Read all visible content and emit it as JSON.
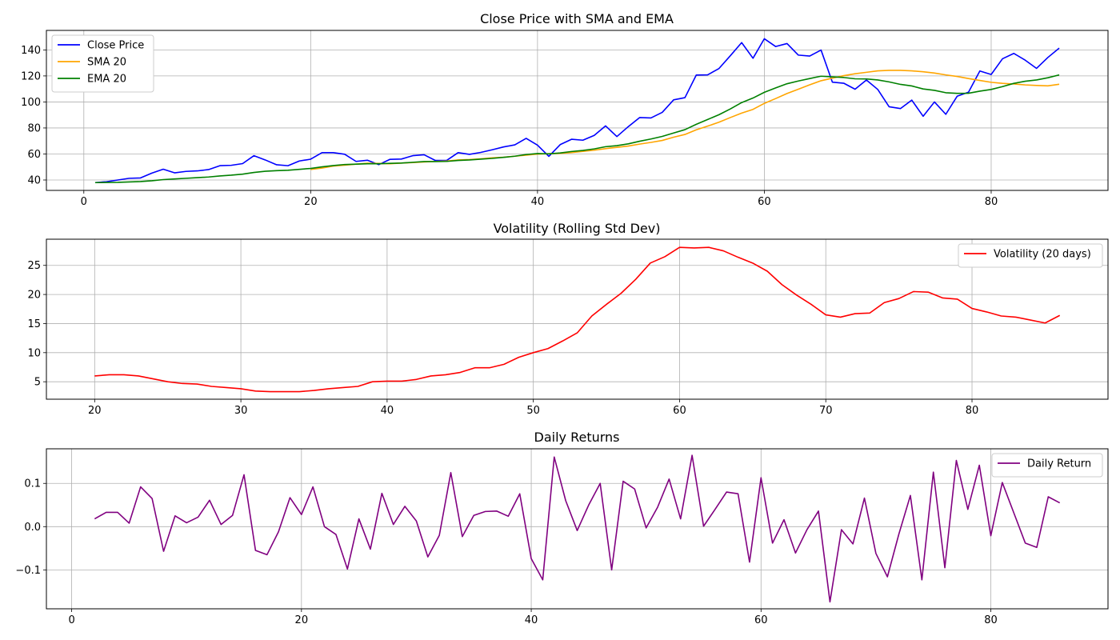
{
  "chart_data": [
    {
      "type": "line",
      "title": "Close Price with SMA and EMA",
      "xlim": [
        -3.3,
        90.3
      ],
      "ylim": [
        32,
        155
      ],
      "xticks": [
        0,
        20,
        40,
        60,
        80
      ],
      "yticks": [
        40,
        60,
        80,
        100,
        120,
        140
      ],
      "grid": true,
      "legend_position": "upper-left",
      "series": [
        {
          "name": "Close Price",
          "color": "#0000ff",
          "x": [
            1,
            2,
            3,
            4,
            5,
            6,
            7,
            8,
            9,
            10,
            11,
            12,
            13,
            14,
            15,
            16,
            17,
            18,
            19,
            20,
            21,
            22,
            23,
            24,
            25,
            26,
            27,
            28,
            29,
            30,
            31,
            32,
            33,
            34,
            35,
            36,
            37,
            38,
            39,
            40,
            41,
            42,
            43,
            44,
            45,
            46,
            47,
            48,
            49,
            50,
            51,
            52,
            53,
            54,
            55,
            56,
            57,
            58,
            59,
            60,
            61,
            62,
            63,
            64,
            65,
            66,
            67,
            68,
            69,
            70,
            71,
            72,
            73,
            74,
            75,
            76,
            77,
            78,
            79,
            80,
            81,
            82,
            83,
            84,
            85,
            86
          ],
          "y": [
            38,
            38.7,
            40,
            41.3,
            41.6,
            45.3,
            48.3,
            45.5,
            46.6,
            47,
            48,
            51,
            51.3,
            52.6,
            58.7,
            55.4,
            51.7,
            51,
            54.6,
            56,
            61,
            61,
            59.8,
            54.3,
            55.2,
            51.8,
            55.9,
            56.1,
            58.7,
            59.4,
            55,
            55.1,
            61,
            59.7,
            61.2,
            63.2,
            65.4,
            67,
            72,
            66.8,
            58.2,
            67.2,
            71.3,
            70.6,
            74.3,
            81.6,
            73.4,
            81,
            88,
            87.7,
            92,
            101.6,
            103.3,
            120.7,
            120.8,
            125.7,
            135.5,
            145.6,
            133.6,
            148.6,
            142.6,
            144.9,
            136,
            135.3,
            139.9,
            115.2,
            114.4,
            109.8,
            116.9,
            109.6,
            96.3,
            94.9,
            101.4,
            89,
            100,
            90.5,
            104.4,
            107.5,
            123.8,
            121.1,
            133.2,
            137.3,
            132.1,
            125.8,
            134.2,
            141.4
          ]
        },
        {
          "name": "SMA 20",
          "color": "#ffa500",
          "x": [
            20,
            21,
            22,
            23,
            24,
            25,
            26,
            27,
            28,
            29,
            30,
            31,
            32,
            33,
            34,
            35,
            36,
            37,
            38,
            39,
            40,
            41,
            42,
            43,
            44,
            45,
            46,
            47,
            48,
            49,
            50,
            51,
            52,
            53,
            54,
            55,
            56,
            57,
            58,
            59,
            60,
            61,
            62,
            63,
            64,
            65,
            66,
            67,
            68,
            69,
            70,
            71,
            72,
            73,
            74,
            75,
            76,
            77,
            78,
            79,
            80,
            81,
            82,
            83,
            84,
            85,
            86
          ],
          "y": [
            48.1,
            49.2,
            50.7,
            51.4,
            52.2,
            52.9,
            52.7,
            52.5,
            53,
            53.4,
            53.9,
            54.3,
            54.6,
            55.4,
            55.7,
            56.3,
            57,
            57.5,
            58.3,
            59.1,
            59.9,
            60.2,
            60.5,
            61.1,
            62,
            62.9,
            64.1,
            65.1,
            66.1,
            67.6,
            68.9,
            70.4,
            72.9,
            75,
            78.6,
            81.4,
            84.4,
            88,
            91.4,
            94.3,
            98.9,
            102.6,
            106.5,
            109.8,
            113.2,
            116.3,
            118.3,
            120.2,
            121.7,
            122.8,
            123.9,
            124.3,
            124.3,
            123.9,
            123.2,
            122.2,
            120.8,
            119.6,
            118,
            116.5,
            115.1,
            114.3,
            113.8,
            113.1,
            112.7,
            112.4,
            113.6
          ]
        },
        {
          "name": "EMA 20",
          "color": "#008000",
          "x": [
            1,
            2,
            3,
            4,
            5,
            6,
            7,
            8,
            9,
            10,
            11,
            12,
            13,
            14,
            15,
            16,
            17,
            18,
            19,
            20,
            21,
            22,
            23,
            24,
            25,
            26,
            27,
            28,
            29,
            30,
            31,
            32,
            33,
            34,
            35,
            36,
            37,
            38,
            39,
            40,
            41,
            42,
            43,
            44,
            45,
            46,
            47,
            48,
            49,
            50,
            51,
            52,
            53,
            54,
            55,
            56,
            57,
            58,
            59,
            60,
            61,
            62,
            63,
            64,
            65,
            66,
            67,
            68,
            69,
            70,
            71,
            72,
            73,
            74,
            75,
            76,
            77,
            78,
            79,
            80,
            81,
            82,
            83,
            84,
            85,
            86
          ],
          "y": [
            38,
            38.1,
            38.2,
            38.5,
            38.8,
            39.4,
            40.3,
            40.8,
            41.3,
            41.8,
            42.3,
            43.1,
            43.7,
            44.5,
            45.8,
            46.7,
            47.2,
            47.5,
            48.2,
            48.9,
            50.1,
            51.1,
            51.9,
            52.2,
            52.5,
            52.5,
            52.8,
            53,
            53.6,
            54.2,
            54.2,
            54.3,
            55,
            55.4,
            56,
            56.6,
            57.4,
            58.3,
            59.6,
            60.3,
            60.1,
            60.8,
            61.9,
            62.7,
            63.9,
            65.6,
            66.4,
            67.8,
            69.8,
            71.5,
            73.5,
            76.1,
            78.7,
            82.8,
            86.5,
            90.2,
            94.6,
            99.5,
            103,
            107.4,
            110.8,
            114,
            116.1,
            118,
            119.8,
            119.3,
            118.8,
            117.8,
            117.7,
            116.9,
            115.4,
            113.5,
            112.3,
            110,
            108.9,
            107.1,
            106.6,
            106.7,
            108.3,
            109.6,
            111.8,
            114.3,
            115.9,
            116.9,
            118.6,
            120.8
          ]
        }
      ]
    },
    {
      "type": "line",
      "title": "Volatility (Rolling Std Dev)",
      "xlim": [
        16.7,
        89.3
      ],
      "ylim": [
        2,
        29.5
      ],
      "xticks": [
        20,
        30,
        40,
        50,
        60,
        70,
        80
      ],
      "yticks": [
        5,
        10,
        15,
        20,
        25
      ],
      "grid": true,
      "legend_position": "upper-right",
      "series": [
        {
          "name": "Volatility (20 days)",
          "color": "#ff0000",
          "x": [
            20,
            21,
            22,
            23,
            24,
            25,
            26,
            27,
            28,
            29,
            30,
            31,
            32,
            33,
            34,
            35,
            36,
            37,
            38,
            39,
            40,
            41,
            42,
            43,
            44,
            45,
            46,
            47,
            48,
            49,
            50,
            51,
            52,
            53,
            54,
            55,
            56,
            57,
            58,
            59,
            60,
            61,
            62,
            63,
            64,
            65,
            66,
            67,
            68,
            69,
            70,
            71,
            72,
            73,
            74,
            75,
            76,
            77,
            78,
            79,
            80,
            81,
            82,
            83,
            84,
            85,
            86
          ],
          "y": [
            6,
            6.2,
            6.2,
            6,
            5.5,
            5,
            4.7,
            4.6,
            4.2,
            4,
            3.8,
            3.4,
            3.3,
            3.3,
            3.3,
            3.5,
            3.8,
            4,
            4.2,
            5,
            5.1,
            5.1,
            5.4,
            6,
            6.2,
            6.6,
            7.4,
            7.4,
            8,
            9.2,
            10,
            10.7,
            12,
            13.4,
            16.3,
            18.3,
            20.2,
            22.6,
            25.4,
            26.5,
            28.1,
            28,
            28.1,
            27.5,
            26.4,
            25.4,
            24,
            21.7,
            19.9,
            18.3,
            16.5,
            16.1,
            16.7,
            16.8,
            18.6,
            19.3,
            20.5,
            20.4,
            19.4,
            19.2,
            17.6,
            17,
            16.3,
            16.1,
            15.6,
            15.1,
            16.4
          ]
        }
      ]
    },
    {
      "type": "line",
      "title": "Daily Returns",
      "xlim": [
        -2.2,
        90.2
      ],
      "ylim": [
        -0.19,
        0.18
      ],
      "xticks": [
        0,
        20,
        40,
        60,
        80
      ],
      "yticks": [
        -0.1,
        0.0,
        0.1
      ],
      "ytick_labels": [
        "−0.1",
        "0.0",
        "0.1"
      ],
      "grid": true,
      "legend_position": "upper-right",
      "series": [
        {
          "name": "Daily Return",
          "color": "#800080",
          "x": [
            2,
            3,
            4,
            5,
            6,
            7,
            8,
            9,
            10,
            11,
            12,
            13,
            14,
            15,
            16,
            17,
            18,
            19,
            20,
            21,
            22,
            23,
            24,
            25,
            26,
            27,
            28,
            29,
            30,
            31,
            32,
            33,
            34,
            35,
            36,
            37,
            38,
            39,
            40,
            41,
            42,
            43,
            44,
            45,
            46,
            47,
            48,
            49,
            50,
            51,
            52,
            53,
            54,
            55,
            56,
            57,
            58,
            59,
            60,
            61,
            62,
            63,
            64,
            65,
            66,
            67,
            68,
            69,
            70,
            71,
            72,
            73,
            74,
            75,
            76,
            77,
            78,
            79,
            80,
            81,
            82,
            83,
            84,
            85,
            86
          ],
          "y": [
            0.018,
            0.033,
            0.033,
            0.008,
            0.092,
            0.065,
            -0.057,
            0.025,
            0.009,
            0.022,
            0.061,
            0.005,
            0.026,
            0.12,
            -0.055,
            -0.065,
            -0.012,
            0.067,
            0.028,
            0.092,
            0.0,
            -0.018,
            -0.098,
            0.018,
            -0.052,
            0.077,
            0.005,
            0.047,
            0.013,
            -0.07,
            -0.02,
            0.125,
            -0.023,
            0.026,
            0.035,
            0.036,
            0.024,
            0.076,
            -0.074,
            -0.123,
            0.161,
            0.06,
            -0.009,
            0.05,
            0.1,
            -0.1,
            0.105,
            0.087,
            -0.003,
            0.045,
            0.11,
            0.018,
            0.165,
            0.001,
            0.04,
            0.08,
            0.076,
            -0.082,
            0.113,
            -0.038,
            0.016,
            -0.061,
            -0.007,
            0.036,
            -0.174,
            -0.007,
            -0.04,
            0.066,
            -0.062,
            -0.116,
            -0.017,
            0.072,
            -0.123,
            0.126,
            -0.095,
            0.153,
            0.04,
            0.142,
            -0.021,
            0.102,
            0.032,
            -0.038,
            -0.048,
            0.069,
            0.055
          ]
        }
      ]
    }
  ]
}
